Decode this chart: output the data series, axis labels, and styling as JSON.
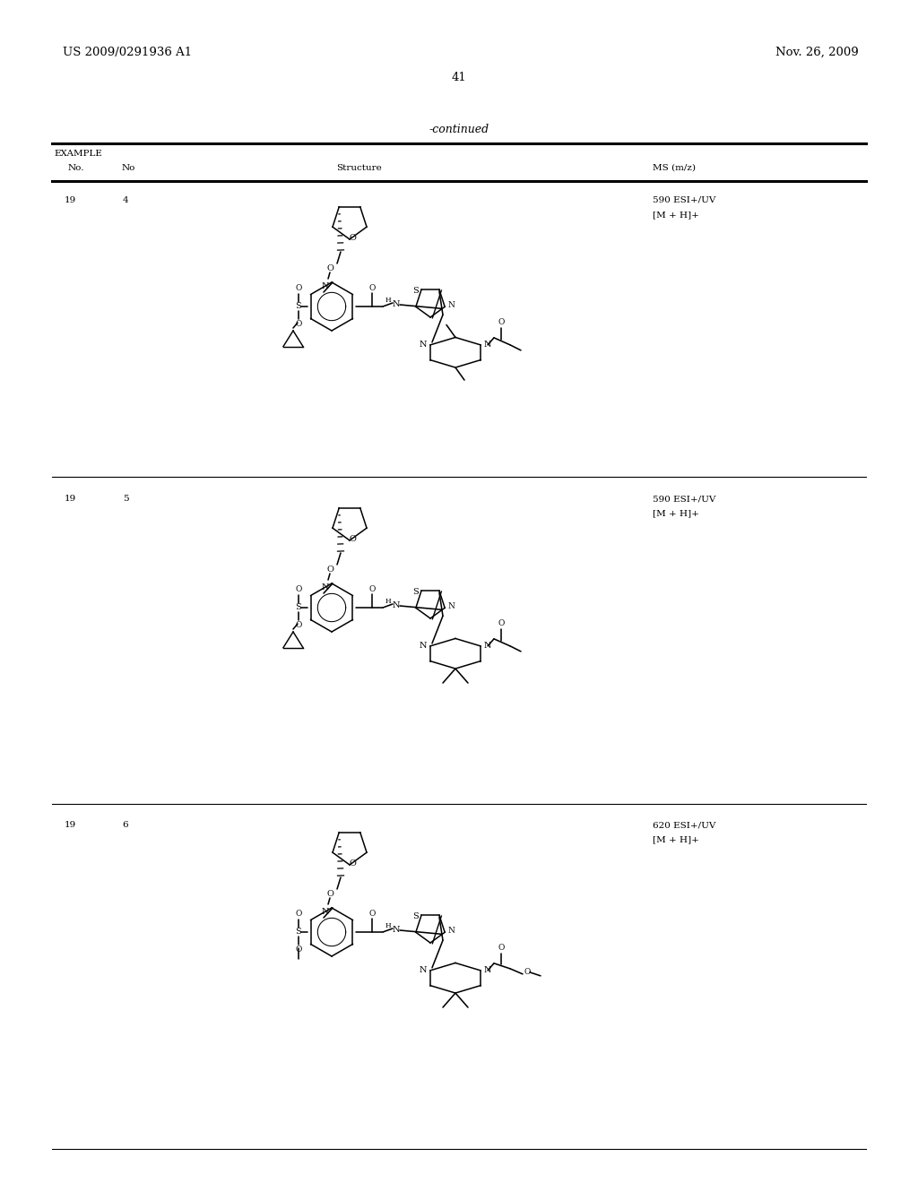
{
  "patent_number": "US 2009/0291936 A1",
  "patent_date": "Nov. 26, 2009",
  "page_number": "41",
  "continued_text": "-continued",
  "col_headers": [
    "EXAMPLE",
    "No.",
    "No",
    "Structure",
    "MS (m/z)"
  ],
  "rows": [
    {
      "example_no": "19",
      "no": "4",
      "ms_line1": "590 ESI+/UV",
      "ms_line2": "[M + H]+"
    },
    {
      "example_no": "19",
      "no": "5",
      "ms_line1": "590 ESI+/UV",
      "ms_line2": "[M + H]+"
    },
    {
      "example_no": "19",
      "no": "6",
      "ms_line1": "620 ESI+/UV",
      "ms_line2": "[M + H]+"
    }
  ],
  "bg": "#ffffff",
  "fg": "#000000"
}
